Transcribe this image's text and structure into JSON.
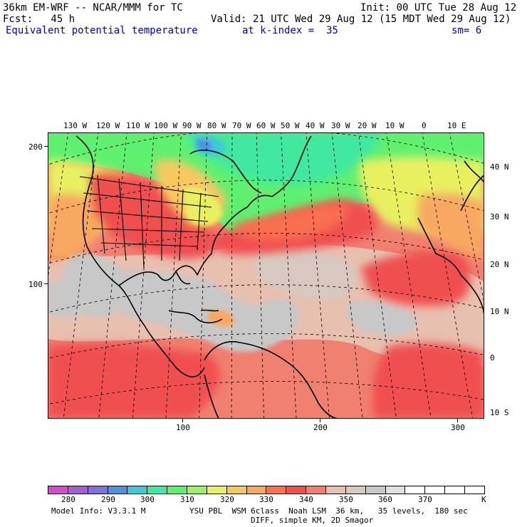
{
  "header": {
    "model": "36km EM-WRF -- NCAR/MMM for TC",
    "init": "Init: 00 UTC Tue 28 Aug 12",
    "fcst": "Fcst:   45 h",
    "valid": "Valid: 21 UTC Wed 29 Aug 12 (15 MDT Wed 29 Aug 12)",
    "field": "Equivalent potential temperature",
    "level": "at k-index =  35",
    "smooth": "sm= 6"
  },
  "map": {
    "lon_labels": [
      "130 W",
      "120 W",
      "110 W",
      "100 W",
      "90 W",
      "80 W",
      "70 W",
      "60 W",
      "50 W",
      "40 W",
      "30 W",
      "20 W",
      "10 W",
      "0",
      "10 E"
    ],
    "lat_labels": [
      "40 N",
      "30 N",
      "20 N",
      "10 N",
      "0",
      "10 S"
    ],
    "y_grid_labels": [
      "200",
      "100"
    ],
    "x_grid_labels": [
      "100",
      "200",
      "300"
    ],
    "colors": {
      "c280": "#d050c8",
      "c285": "#a060d0",
      "c290": "#8070e0",
      "c295": "#5090e0",
      "c300": "#40c8d8",
      "c305": "#40e8a0",
      "c310": "#60f070",
      "c315": "#a0f060",
      "c320": "#e8f060",
      "c325": "#f8c860",
      "c330": "#f8a860",
      "c335": "#f87050",
      "c340": "#f05050",
      "c345": "#f08070",
      "c350": "#e8c0b0",
      "c355": "#d8c8c0",
      "c360": "#c8c8c8",
      "c365": "#e0e0e0"
    }
  },
  "colorbar": {
    "colors": [
      "#d050c8",
      "#a060d0",
      "#8070e0",
      "#5090e0",
      "#40c8d8",
      "#40e8a0",
      "#60f070",
      "#a0f060",
      "#e8f060",
      "#f8c860",
      "#f8a860",
      "#f87050",
      "#f05050",
      "#f08070",
      "#e8c0b0",
      "#d8c8c0",
      "#c8c8c8",
      "#e0e0e0",
      "#ffffff",
      "#ffffff",
      "#ffffff",
      "#ffffff"
    ],
    "labels": [
      "280",
      "290",
      "300",
      "310",
      "320",
      "330",
      "340",
      "350",
      "360",
      "370"
    ],
    "unit": "K"
  },
  "footer": {
    "line1_left": "Model Info: V3.3.1 M",
    "line1_right": "YSU PBL  WSM 6class  Noah LSM  36 km,   35 levels,  180 sec",
    "line2": "DIFF, simple KM, 2D Smagor"
  }
}
